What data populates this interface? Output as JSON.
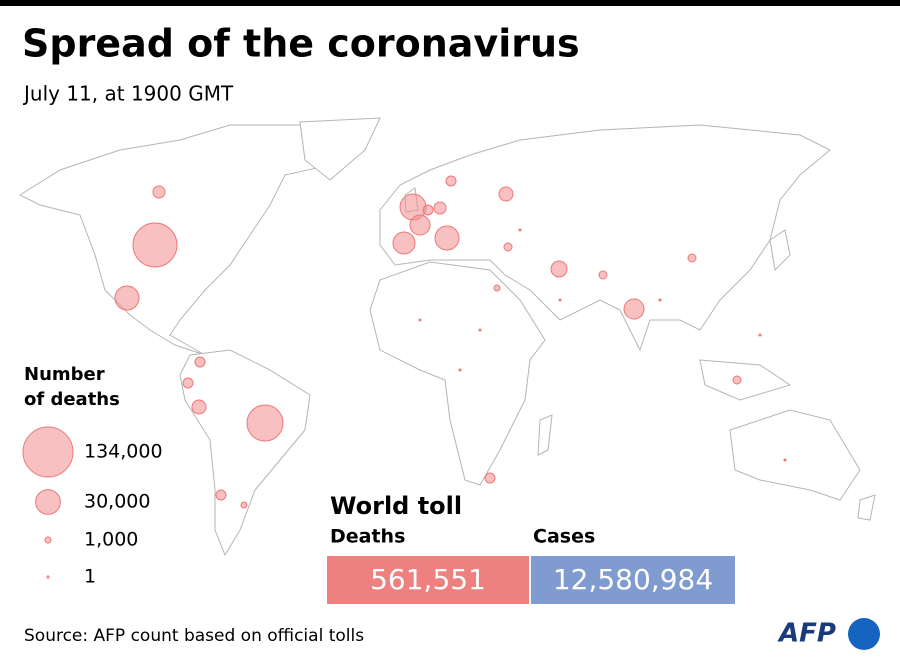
{
  "header": {
    "title": "Spread of the coronavirus",
    "subtitle": "July 11, at 1900 GMT"
  },
  "legend": {
    "title_lines": [
      "Number",
      "of deaths"
    ],
    "entries": [
      {
        "value": 134000,
        "label": "134,000"
      },
      {
        "value": 30000,
        "label": "30,000"
      },
      {
        "value": 1000,
        "label": "1,000"
      },
      1
    ]
  },
  "world_toll": {
    "title": "World toll",
    "deaths": {
      "label": "Deaths",
      "value": "561,551",
      "color": "#ee8080"
    },
    "cases": {
      "label": "Cases",
      "value": "12,580,984",
      "color": "#7f9bd0"
    }
  },
  "footer": {
    "source": "Source: AFP count based on official tolls",
    "logo": "AFP"
  }
}
